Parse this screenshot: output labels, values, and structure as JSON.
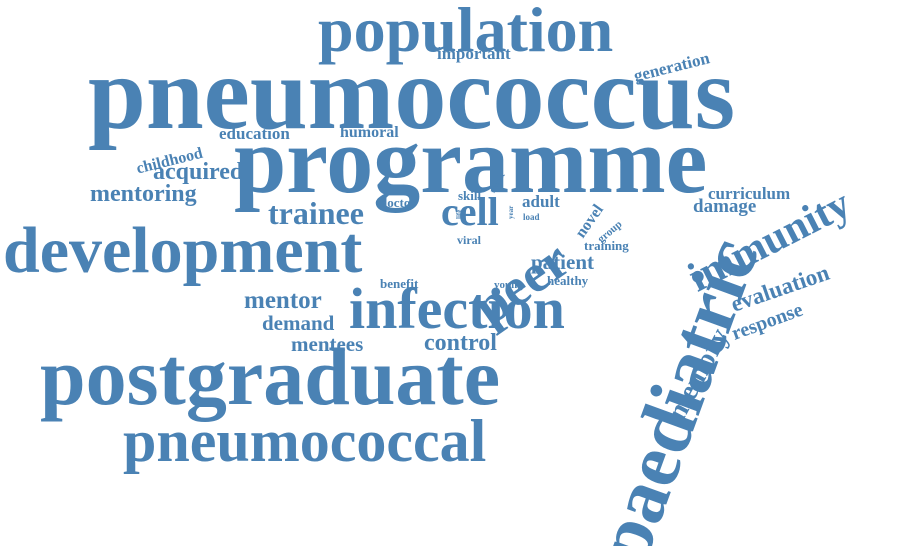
{
  "color": "#4a82b4",
  "words": [
    "pneumococcus",
    "population",
    "important",
    "generation",
    "programme",
    "childhood",
    "education",
    "humoral",
    "acquired",
    "mentoring",
    "skill",
    "result",
    "adult",
    "novel",
    "curriculum",
    "damage",
    "immunity",
    "trainee",
    "doctor",
    "life",
    "year",
    "load",
    "cell",
    "peer",
    "group",
    "training",
    "development",
    "viral",
    "patient",
    "healthy",
    "benefit",
    "young",
    "evaluation",
    "response",
    "memory",
    "mentor",
    "infection",
    "demand",
    "mentees",
    "control",
    "postgraduate",
    "pneumococcal",
    "paediatric"
  ]
}
